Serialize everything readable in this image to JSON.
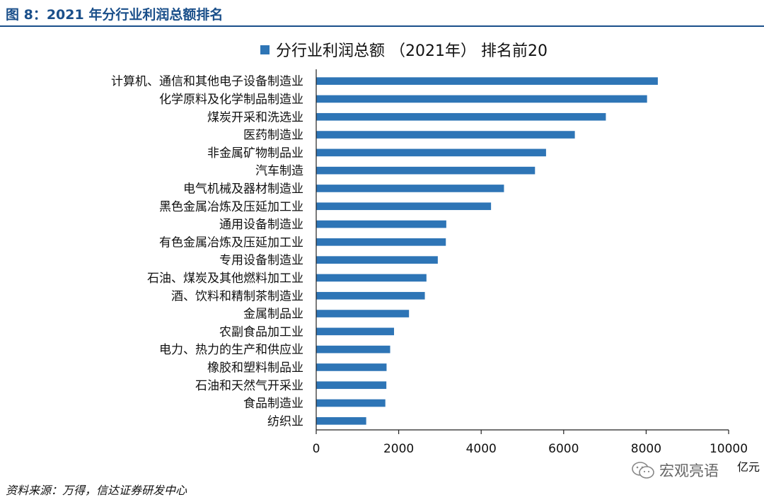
{
  "figure": {
    "title": "图 8：2021 年分行业利润总额排名",
    "source": "资料来源：万得，信达证券研发中心",
    "watermark": "宏观亮语"
  },
  "colors": {
    "bar": "#2e75b6",
    "title": "#1a4f8a",
    "axis": "#222222"
  },
  "chart_data": {
    "type": "bar",
    "orientation": "horizontal",
    "legend": "分行业利润总额 （2021年） 排名前20",
    "legend_position": "top",
    "unit": "亿元",
    "xlim": [
      0,
      10000
    ],
    "xticks": [
      0,
      2000,
      4000,
      6000,
      8000,
      10000
    ],
    "grid": false,
    "categories": [
      "计算机、通信和其他电子设备制造业",
      "化学原料及化学制品制造业",
      "煤炭开采和洗选业",
      "医药制造业",
      "非金属矿物制品业",
      "汽车制造",
      "电气机械及器材制造业",
      "黑色金属冶炼及压延加工业",
      "通用设备制造业",
      "有色金属冶炼及压延加工业",
      "专用设备制造业",
      "石油、煤炭及其他燃料加工业",
      "酒、饮料和精制茶制造业",
      "金属制品业",
      "农副食品加工业",
      "电力、热力的生产和供应业",
      "橡胶和塑料制品业",
      "石油和天然气开采业",
      "食品制造业",
      "纺织业"
    ],
    "values": [
      8283,
      8022,
      7023,
      6271,
      5573,
      5305,
      4553,
      4239,
      3154,
      3143,
      2948,
      2673,
      2634,
      2250,
      1887,
      1793,
      1706,
      1701,
      1676,
      1212
    ]
  }
}
